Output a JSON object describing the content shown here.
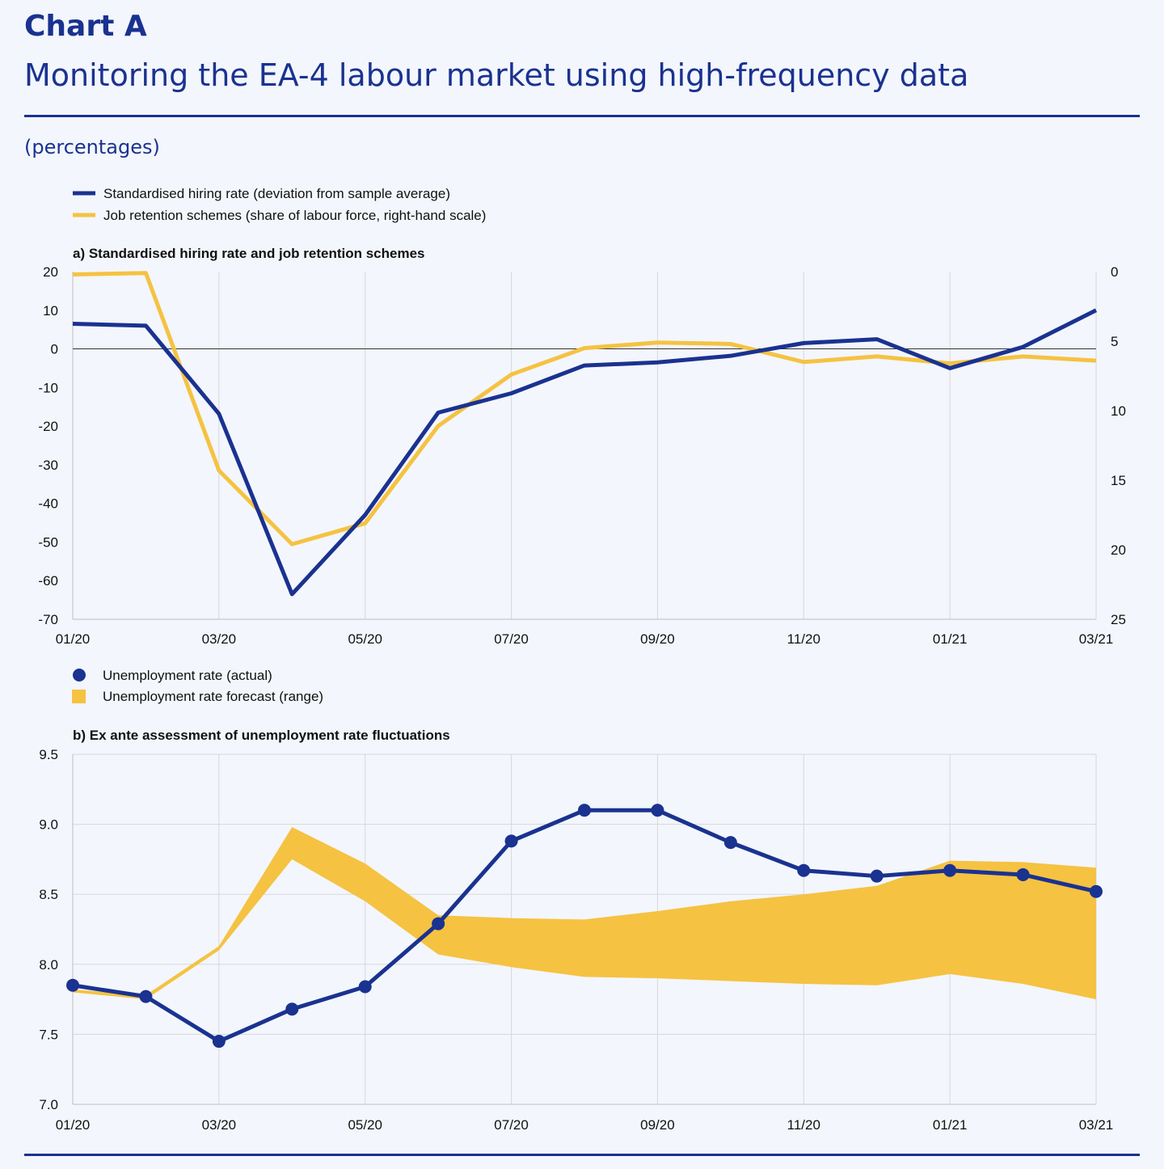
{
  "header": {
    "label": "Chart A",
    "title": "Monitoring the EA-4 labour market using high-frequency data",
    "units": "(percentages)"
  },
  "colors": {
    "navy": "#1a3290",
    "gold": "#f5c242",
    "grid": "#d8d8d8"
  },
  "chart_data": [
    {
      "type": "line",
      "title": "a) Standardised hiring rate and job retention schemes",
      "x_ticks": [
        "01/20",
        "03/20",
        "05/20",
        "07/20",
        "09/20",
        "11/20",
        "01/21",
        "03/21"
      ],
      "ylim_left": [
        -70,
        20
      ],
      "yticks_left": [
        "20",
        "10",
        "0",
        "-10",
        "-20",
        "-30",
        "-40",
        "-50",
        "-60",
        "-70"
      ],
      "ylim_right_inverted": [
        0,
        25
      ],
      "yticks_right": [
        "0",
        "5",
        "10",
        "15",
        "20",
        "25"
      ],
      "legend": [
        "Standardised hiring rate (deviation from sample average)",
        "Job retention schemes (share of labour force, right-hand scale)"
      ],
      "series": [
        {
          "name": "Standardised hiring rate (deviation from sample average)",
          "axis": "left",
          "values": [
            6.5,
            6,
            -16.8,
            -63.5,
            -43,
            -16.5,
            -11.5,
            -4.3,
            -3.5,
            -1.8,
            1.5,
            2.5,
            -5,
            0.5,
            10
          ]
        },
        {
          "name": "Job retention schemes (share of labour force, right-hand scale)",
          "axis": "right",
          "values": [
            0.2,
            0.1,
            14.3,
            19.6,
            18.1,
            11.1,
            7.4,
            5.5,
            5.1,
            5.2,
            6.5,
            6.1,
            6.6,
            6.1,
            6.4
          ]
        }
      ]
    },
    {
      "type": "line",
      "title": "b) Ex ante assessment of unemployment rate fluctuations",
      "x_ticks": [
        "01/20",
        "03/20",
        "05/20",
        "07/20",
        "09/20",
        "11/20",
        "01/21",
        "03/21"
      ],
      "ylim": [
        7.0,
        9.5
      ],
      "yticks": [
        "9.5",
        "9.0",
        "8.5",
        "8.0",
        "7.5",
        "7.0"
      ],
      "legend": [
        "Unemployment rate (actual)",
        "Unemployment rate forecast (range)"
      ],
      "actual": [
        7.85,
        7.77,
        7.45,
        7.68,
        7.84,
        8.29,
        8.88,
        9.1,
        9.1,
        8.87,
        8.67,
        8.63,
        8.67,
        8.64,
        8.52
      ],
      "forecast_upper": [
        7.82,
        7.78,
        8.13,
        8.98,
        8.72,
        8.35,
        8.33,
        8.32,
        8.38,
        8.45,
        8.5,
        8.56,
        8.74,
        8.73,
        8.69
      ],
      "forecast_lower": [
        7.8,
        7.75,
        8.1,
        8.75,
        8.45,
        8.07,
        7.98,
        7.91,
        7.9,
        7.88,
        7.86,
        7.85,
        7.93,
        7.86,
        7.75
      ]
    }
  ]
}
